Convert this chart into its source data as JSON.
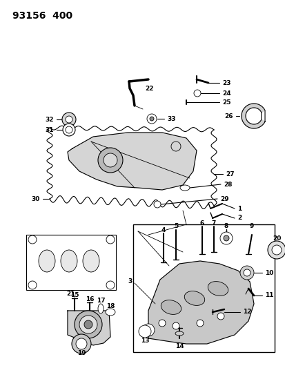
{
  "title": "93156  400",
  "bg_color": "#ffffff",
  "fig_width": 4.14,
  "fig_height": 5.33,
  "dpi": 100,
  "line_color": "#000000",
  "fill_light": "#d8d8d8",
  "fill_mid": "#c0c0c0"
}
